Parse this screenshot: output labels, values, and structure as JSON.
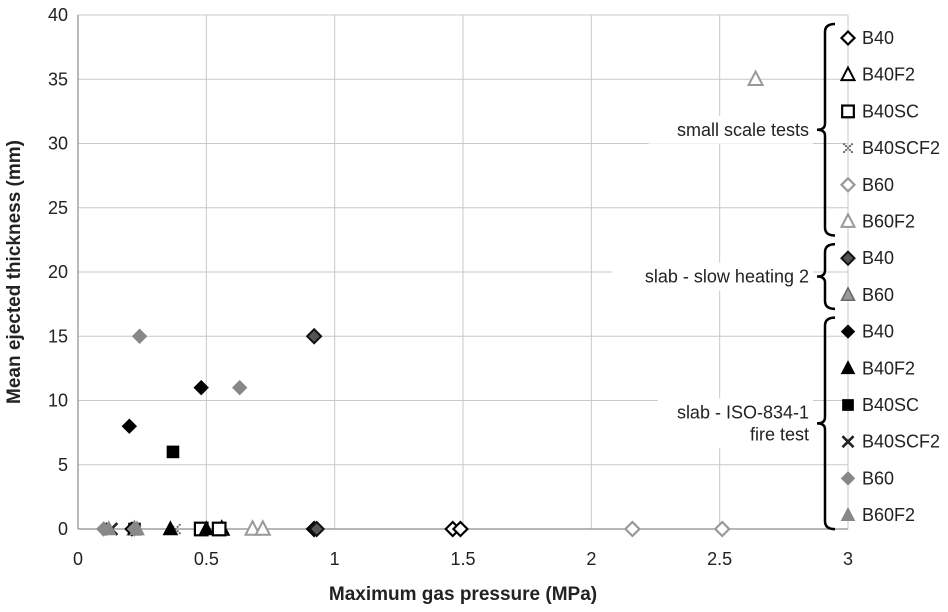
{
  "chart_data": {
    "type": "scatter",
    "title": "",
    "xlabel": "Maximum gas pressure (MPa)",
    "ylabel": "Mean ejected thickness (mm)",
    "xlim": [
      0,
      3
    ],
    "ylim": [
      0,
      40
    ],
    "x_ticks": [
      "0",
      "0.5",
      "1",
      "1.5",
      "2",
      "2.5",
      "3"
    ],
    "y_ticks": [
      "0",
      "5",
      "10",
      "15",
      "20",
      "25",
      "30",
      "35",
      "40"
    ],
    "grid": true,
    "legend_position": "right",
    "groups": [
      {
        "label": "small scale tests"
      },
      {
        "label": "slab - slow heating 2"
      },
      {
        "label": "slab - ISO-834-1\nfire test"
      }
    ],
    "series": [
      {
        "name": "B40",
        "group": 0,
        "marker": "diamond-open",
        "color": "#000000",
        "points": [
          [
            0.92,
            0
          ],
          [
            1.46,
            0
          ],
          [
            1.49,
            0
          ]
        ]
      },
      {
        "name": "B40F2",
        "group": 0,
        "marker": "triangle-open",
        "color": "#000000",
        "points": [
          [
            0.56,
            0
          ]
        ]
      },
      {
        "name": "B40SC",
        "group": 0,
        "marker": "square-open",
        "color": "#000000",
        "points": [
          [
            0.48,
            0
          ],
          [
            0.55,
            0
          ]
        ]
      },
      {
        "name": "B40SCF2",
        "group": 0,
        "marker": "x-dotted",
        "color": "#666666",
        "points": [
          [
            0.38,
            0
          ]
        ]
      },
      {
        "name": "B60",
        "group": 0,
        "marker": "diamond-open",
        "color": "#999999",
        "points": [
          [
            2.16,
            0
          ],
          [
            2.51,
            0
          ]
        ]
      },
      {
        "name": "B60F2",
        "group": 0,
        "marker": "triangle-open",
        "color": "#999999",
        "points": [
          [
            2.64,
            35
          ],
          [
            0.68,
            0
          ],
          [
            0.72,
            0
          ]
        ]
      },
      {
        "name": "B40",
        "group": 1,
        "marker": "diamond-filled-outlined",
        "color": "#555555",
        "points": [
          [
            0.92,
            15
          ],
          [
            0.93,
            0
          ]
        ]
      },
      {
        "name": "B60",
        "group": 1,
        "marker": "triangle-filled-outlined",
        "color": "#999999",
        "points": [
          [
            0.22,
            0
          ]
        ]
      },
      {
        "name": "B40",
        "group": 2,
        "marker": "diamond-filled",
        "color": "#000000",
        "points": [
          [
            0.2,
            8
          ],
          [
            0.48,
            11
          ],
          [
            0.21,
            0
          ]
        ]
      },
      {
        "name": "B40F2",
        "group": 2,
        "marker": "triangle-filled",
        "color": "#000000",
        "points": [
          [
            0.36,
            0
          ],
          [
            0.5,
            0
          ]
        ]
      },
      {
        "name": "B40SC",
        "group": 2,
        "marker": "square-filled",
        "color": "#000000",
        "points": [
          [
            0.37,
            6
          ],
          [
            0.22,
            0
          ]
        ]
      },
      {
        "name": "B40SCF2",
        "group": 2,
        "marker": "x",
        "color": "#222222",
        "points": [
          [
            0.13,
            0
          ]
        ]
      },
      {
        "name": "B60",
        "group": 2,
        "marker": "diamond-filled",
        "color": "#888888",
        "points": [
          [
            0.24,
            15
          ],
          [
            0.63,
            11
          ],
          [
            0.1,
            0
          ],
          [
            0.22,
            0
          ]
        ]
      },
      {
        "name": "B60F2",
        "group": 2,
        "marker": "triangle-filled",
        "color": "#888888",
        "points": [
          [
            0.12,
            0
          ],
          [
            0.23,
            0
          ]
        ]
      }
    ]
  }
}
